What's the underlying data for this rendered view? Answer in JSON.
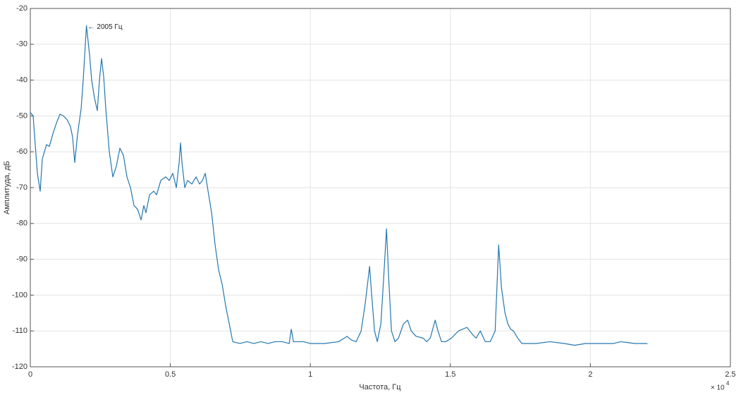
{
  "chart_data": {
    "type": "line",
    "xlabel": "Частота, Гц",
    "ylabel": "Амплитуда, дБ",
    "x_multiplier": {
      "base": "× 10",
      "exponent": "4"
    },
    "annotation": "← 2005 Гц",
    "xlim": [
      0,
      2.5
    ],
    "xticks": [
      0,
      0.5,
      1,
      1.5,
      2,
      2.5
    ],
    "ylim": [
      -120,
      -20
    ],
    "yticks": [
      -120,
      -110,
      -100,
      -90,
      -80,
      -70,
      -60,
      -50,
      -40,
      -30,
      -20
    ],
    "grid": true,
    "x": [
      0,
      0.0101,
      0.0176,
      0.0252,
      0.0353,
      0.0428,
      0.0504,
      0.0579,
      0.068,
      0.0806,
      0.0932,
      0.1058,
      0.1184,
      0.131,
      0.1436,
      0.1511,
      0.1587,
      0.1688,
      0.1814,
      0.1889,
      0.1965,
      0.2005,
      0.2116,
      0.2191,
      0.2292,
      0.2393,
      0.2469,
      0.2544,
      0.262,
      0.2695,
      0.2821,
      0.2947,
      0.3073,
      0.3199,
      0.3325,
      0.3451,
      0.3577,
      0.3703,
      0.3829,
      0.3955,
      0.4055,
      0.4131,
      0.4257,
      0.4408,
      0.4509,
      0.466,
      0.4836,
      0.4962,
      0.5088,
      0.5214,
      0.5315,
      0.5365,
      0.5416,
      0.5516,
      0.5617,
      0.5768,
      0.5919,
      0.6045,
      0.6146,
      0.6247,
      0.6348,
      0.6474,
      0.6599,
      0.6725,
      0.6851,
      0.6977,
      0.7103,
      0.7229,
      0.7481,
      0.7733,
      0.7985,
      0.8237,
      0.8489,
      0.8741,
      0.8992,
      0.9244,
      0.932,
      0.9395,
      0.9748,
      1.0,
      1.0504,
      1.1008,
      1.131,
      1.1461,
      1.1637,
      1.1814,
      1.1965,
      1.2116,
      1.2191,
      1.2292,
      1.2393,
      1.2519,
      1.262,
      1.272,
      1.2796,
      1.2897,
      1.3023,
      1.3149,
      1.3325,
      1.3476,
      1.3602,
      1.3778,
      1.403,
      1.4156,
      1.4282,
      1.4458,
      1.4559,
      1.4685,
      1.4836,
      1.5038,
      1.529,
      1.5592,
      1.5793,
      1.5919,
      1.6071,
      1.6247,
      1.6423,
      1.6599,
      1.6725,
      1.6826,
      1.6952,
      1.7053,
      1.7154,
      1.7254,
      1.7405,
      1.7557,
      1.806,
      1.8564,
      1.9068,
      1.9446,
      1.9824,
      2.0327,
      2.0831,
      2.1083,
      2.1587,
      2.204
    ],
    "series": [
      {
        "color": "#2477b0",
        "values": [
          -49,
          -50,
          -58,
          -66,
          -71,
          -62,
          -60,
          -58,
          -58.5,
          -55,
          -52,
          -49.5,
          -50,
          -51,
          -53,
          -56,
          -63,
          -55,
          -48,
          -40,
          -30,
          -24.8,
          -33,
          -40,
          -45,
          -48.5,
          -40,
          -34,
          -39,
          -48,
          -60,
          -67,
          -64,
          -59,
          -61,
          -67,
          -70,
          -75,
          -76,
          -79,
          -75,
          -77,
          -72,
          -71,
          -72,
          -68,
          -67,
          -68,
          -66,
          -70,
          -63,
          -57.5,
          -63,
          -70,
          -68,
          -69,
          -67,
          -69,
          -68,
          -66,
          -71,
          -77,
          -86,
          -93,
          -97,
          -103,
          -108,
          -113,
          -113.5,
          -113,
          -113.5,
          -113,
          -113.5,
          -113,
          -113,
          -113.5,
          -109.5,
          -113,
          -113,
          -113.5,
          -113.5,
          -113,
          -111.5,
          -112.5,
          -113,
          -110,
          -102,
          -92,
          -100,
          -110,
          -113,
          -108,
          -95,
          -81.5,
          -95,
          -110,
          -113,
          -112,
          -108,
          -107,
          -110,
          -111.5,
          -112,
          -113,
          -112,
          -107,
          -110,
          -113,
          -113,
          -112,
          -110,
          -109,
          -111,
          -112,
          -110,
          -113,
          -113,
          -110,
          -86,
          -98,
          -105,
          -108,
          -109.5,
          -110,
          -112,
          -113.5,
          -113.5,
          -113,
          -113.5,
          -114,
          -113.5,
          -113.5,
          -113.5,
          -113,
          -113.5,
          -113.5
        ]
      }
    ]
  }
}
